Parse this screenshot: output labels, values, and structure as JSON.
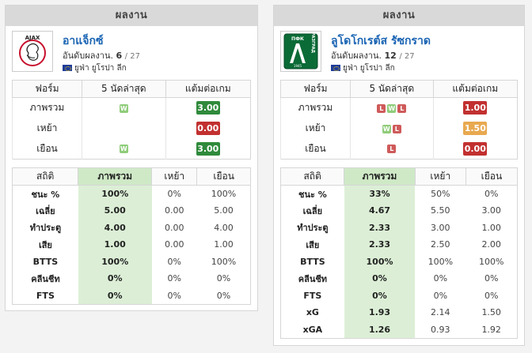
{
  "colors": {
    "win": "#8fcc7a",
    "loss": "#cf5a5a",
    "ppg_good": "#2f8a3b",
    "ppg_bad": "#c23030",
    "ppg_mid": "#e8a950",
    "highlight": "#dcefd6"
  },
  "cards": [
    {
      "header": "ผลงาน",
      "team": "อาแจ็กซ์",
      "rank_label": "อันดับผลงาน.",
      "rank": "6",
      "rank_total": "/ 27",
      "league": "ยูฟ่า ยูโรปา ลีก",
      "logo_icon": "ajax-logo-icon",
      "form_headers": [
        "ฟอร์ม",
        "5 นัดล่าสุด",
        "แต้มต่อเกม"
      ],
      "form_rows": [
        {
          "label": "ภาพรวม",
          "results": [
            "W"
          ],
          "ppg": "3.00",
          "ppg_class": "ppg-good"
        },
        {
          "label": "เหย้า",
          "results": [],
          "ppg": "0.00",
          "ppg_class": "ppg-bad"
        },
        {
          "label": "เยือน",
          "results": [
            "W"
          ],
          "ppg": "3.00",
          "ppg_class": "ppg-good"
        }
      ],
      "stats_headers": [
        "สถิติ",
        "ภาพรวม",
        "เหย้า",
        "เยือน"
      ],
      "stats_rows": [
        {
          "label": "ชนะ %",
          "overall": "100%",
          "home": "0%",
          "away": "100%"
        },
        {
          "label": "เฉลี่ย",
          "overall": "5.00",
          "home": "0.00",
          "away": "5.00"
        },
        {
          "label": "ทำประตู",
          "overall": "4.00",
          "home": "0.00",
          "away": "4.00"
        },
        {
          "label": "เสีย",
          "overall": "1.00",
          "home": "0.00",
          "away": "1.00"
        },
        {
          "label": "BTTS",
          "overall": "100%",
          "home": "0%",
          "away": "100%"
        },
        {
          "label": "คลีนชีท",
          "overall": "0%",
          "home": "0%",
          "away": "0%"
        },
        {
          "label": "FTS",
          "overall": "0%",
          "home": "0%",
          "away": "0%"
        }
      ]
    },
    {
      "header": "ผลงาน",
      "team": "ลูโดโกเรต์ส รัซกราด",
      "rank_label": "อันดับผลงาน.",
      "rank": "12",
      "rank_total": "/ 27",
      "league": "ยูฟ่า ยูโรปา ลีก",
      "logo_icon": "ludogorets-logo-icon",
      "logo_text": {
        "top": "ПФК",
        "side": "РАЗГРАД",
        "year": "1945"
      },
      "form_headers": [
        "ฟอร์ม",
        "5 นัดล่าสุด",
        "แต้มต่อเกม"
      ],
      "form_rows": [
        {
          "label": "ภาพรวม",
          "results": [
            "L",
            "W",
            "L"
          ],
          "ppg": "1.00",
          "ppg_class": "ppg-bad"
        },
        {
          "label": "เหย้า",
          "results": [
            "W",
            "L"
          ],
          "ppg": "1.50",
          "ppg_class": "ppg-mid"
        },
        {
          "label": "เยือน",
          "results": [
            "L"
          ],
          "ppg": "0.00",
          "ppg_class": "ppg-bad"
        }
      ],
      "stats_headers": [
        "สถิติ",
        "ภาพรวม",
        "เหย้า",
        "เยือน"
      ],
      "stats_rows": [
        {
          "label": "ชนะ %",
          "overall": "33%",
          "home": "50%",
          "away": "0%"
        },
        {
          "label": "เฉลี่ย",
          "overall": "4.67",
          "home": "5.50",
          "away": "3.00"
        },
        {
          "label": "ทำประตู",
          "overall": "2.33",
          "home": "3.00",
          "away": "1.00"
        },
        {
          "label": "เสีย",
          "overall": "2.33",
          "home": "2.50",
          "away": "2.00"
        },
        {
          "label": "BTTS",
          "overall": "100%",
          "home": "100%",
          "away": "100%"
        },
        {
          "label": "คลีนชีท",
          "overall": "0%",
          "home": "0%",
          "away": "0%"
        },
        {
          "label": "FTS",
          "overall": "0%",
          "home": "0%",
          "away": "0%"
        },
        {
          "label": "xG",
          "overall": "1.93",
          "home": "2.14",
          "away": "1.50"
        },
        {
          "label": "xGA",
          "overall": "1.26",
          "home": "0.93",
          "away": "1.92"
        }
      ]
    }
  ]
}
